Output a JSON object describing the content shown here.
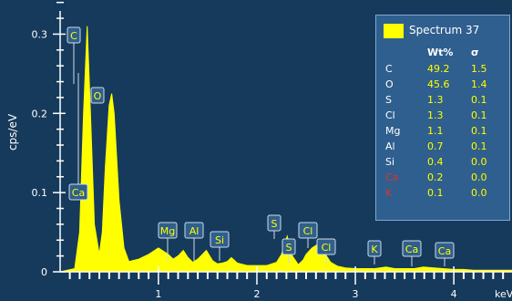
{
  "chart_data": {
    "type": "area",
    "ylabel": "cps/eV",
    "xlabel": "keV",
    "xlim": [
      -0.1,
      4.85
    ],
    "ylim": [
      0,
      0.35
    ],
    "x_ticks": [
      "1",
      "2",
      "3",
      "4"
    ],
    "y_ticks": [
      "0",
      "0.1",
      "0.2",
      "0.3"
    ],
    "series": [
      {
        "name": "Spectrum 37",
        "x": [
          0,
          0.15,
          0.2,
          0.24,
          0.277,
          0.31,
          0.35,
          0.4,
          0.43,
          0.46,
          0.5,
          0.525,
          0.55,
          0.6,
          0.65,
          0.7,
          0.8,
          0.9,
          1.0,
          1.1,
          1.15,
          1.2,
          1.253,
          1.3,
          1.35,
          1.4,
          1.487,
          1.55,
          1.6,
          1.65,
          1.7,
          1.74,
          1.8,
          1.9,
          2.0,
          2.1,
          2.2,
          2.25,
          2.307,
          2.36,
          2.42,
          2.47,
          2.5,
          2.56,
          2.622,
          2.68,
          2.75,
          2.82,
          2.9,
          3.0,
          3.2,
          3.31,
          3.4,
          3.6,
          3.69,
          3.8,
          4.0,
          4.1,
          4.2,
          4.5,
          4.8
        ],
        "y": [
          0.0,
          0.004,
          0.05,
          0.2,
          0.31,
          0.2,
          0.06,
          0.022,
          0.05,
          0.13,
          0.21,
          0.225,
          0.2,
          0.09,
          0.03,
          0.013,
          0.016,
          0.022,
          0.03,
          0.022,
          0.016,
          0.02,
          0.027,
          0.018,
          0.012,
          0.016,
          0.027,
          0.014,
          0.01,
          0.011,
          0.013,
          0.018,
          0.011,
          0.008,
          0.008,
          0.008,
          0.012,
          0.022,
          0.045,
          0.02,
          0.009,
          0.015,
          0.022,
          0.03,
          0.035,
          0.025,
          0.012,
          0.007,
          0.005,
          0.004,
          0.004,
          0.006,
          0.004,
          0.004,
          0.006,
          0.005,
          0.003,
          0.003,
          0.002,
          0.002,
          0.002
        ]
      }
    ],
    "peak_labels": [
      {
        "label": "C",
        "x": 0.277
      },
      {
        "label": "O",
        "x": 0.525
      },
      {
        "label": "Ca",
        "x": 0.28
      },
      {
        "label": "Mg",
        "x": 1.253
      },
      {
        "label": "Al",
        "x": 1.487
      },
      {
        "label": "Si",
        "x": 1.74
      },
      {
        "label": "S",
        "x": 2.307
      },
      {
        "label": "S",
        "x": 2.47
      },
      {
        "label": "Cl",
        "x": 2.622
      },
      {
        "label": "Cl",
        "x": 2.82
      },
      {
        "label": "K",
        "x": 3.31
      },
      {
        "label": "Ca",
        "x": 3.69
      },
      {
        "label": "Ca",
        "x": 4.01
      }
    ],
    "table": {
      "legend_name": "Spectrum 37",
      "col_wt": "Wt%",
      "col_sigma": "σ",
      "rows": [
        {
          "el": "C",
          "wt": "49.2",
          "sigma": "1.5",
          "color": "#ffffff"
        },
        {
          "el": "O",
          "wt": "45.6",
          "sigma": "1.4",
          "color": "#ffffff"
        },
        {
          "el": "S",
          "wt": "1.3",
          "sigma": "0.1",
          "color": "#ffffff"
        },
        {
          "el": "Cl",
          "wt": "1.3",
          "sigma": "0.1",
          "color": "#ffffff"
        },
        {
          "el": "Mg",
          "wt": "1.1",
          "sigma": "0.1",
          "color": "#ffffff"
        },
        {
          "el": "Al",
          "wt": "0.7",
          "sigma": "0.1",
          "color": "#ffffff"
        },
        {
          "el": "Si",
          "wt": "0.4",
          "sigma": "0.0",
          "color": "#ffffff"
        },
        {
          "el": "Ca",
          "wt": "0.2",
          "sigma": "0.0",
          "color": "#e0322b"
        },
        {
          "el": "K",
          "wt": "0.1",
          "sigma": "0.0",
          "color": "#e0322b"
        }
      ]
    },
    "colors": {
      "background": "#153a5c",
      "series": "#ffff00",
      "label_box": "#2f5f8e",
      "axis": "#ffffff"
    }
  }
}
